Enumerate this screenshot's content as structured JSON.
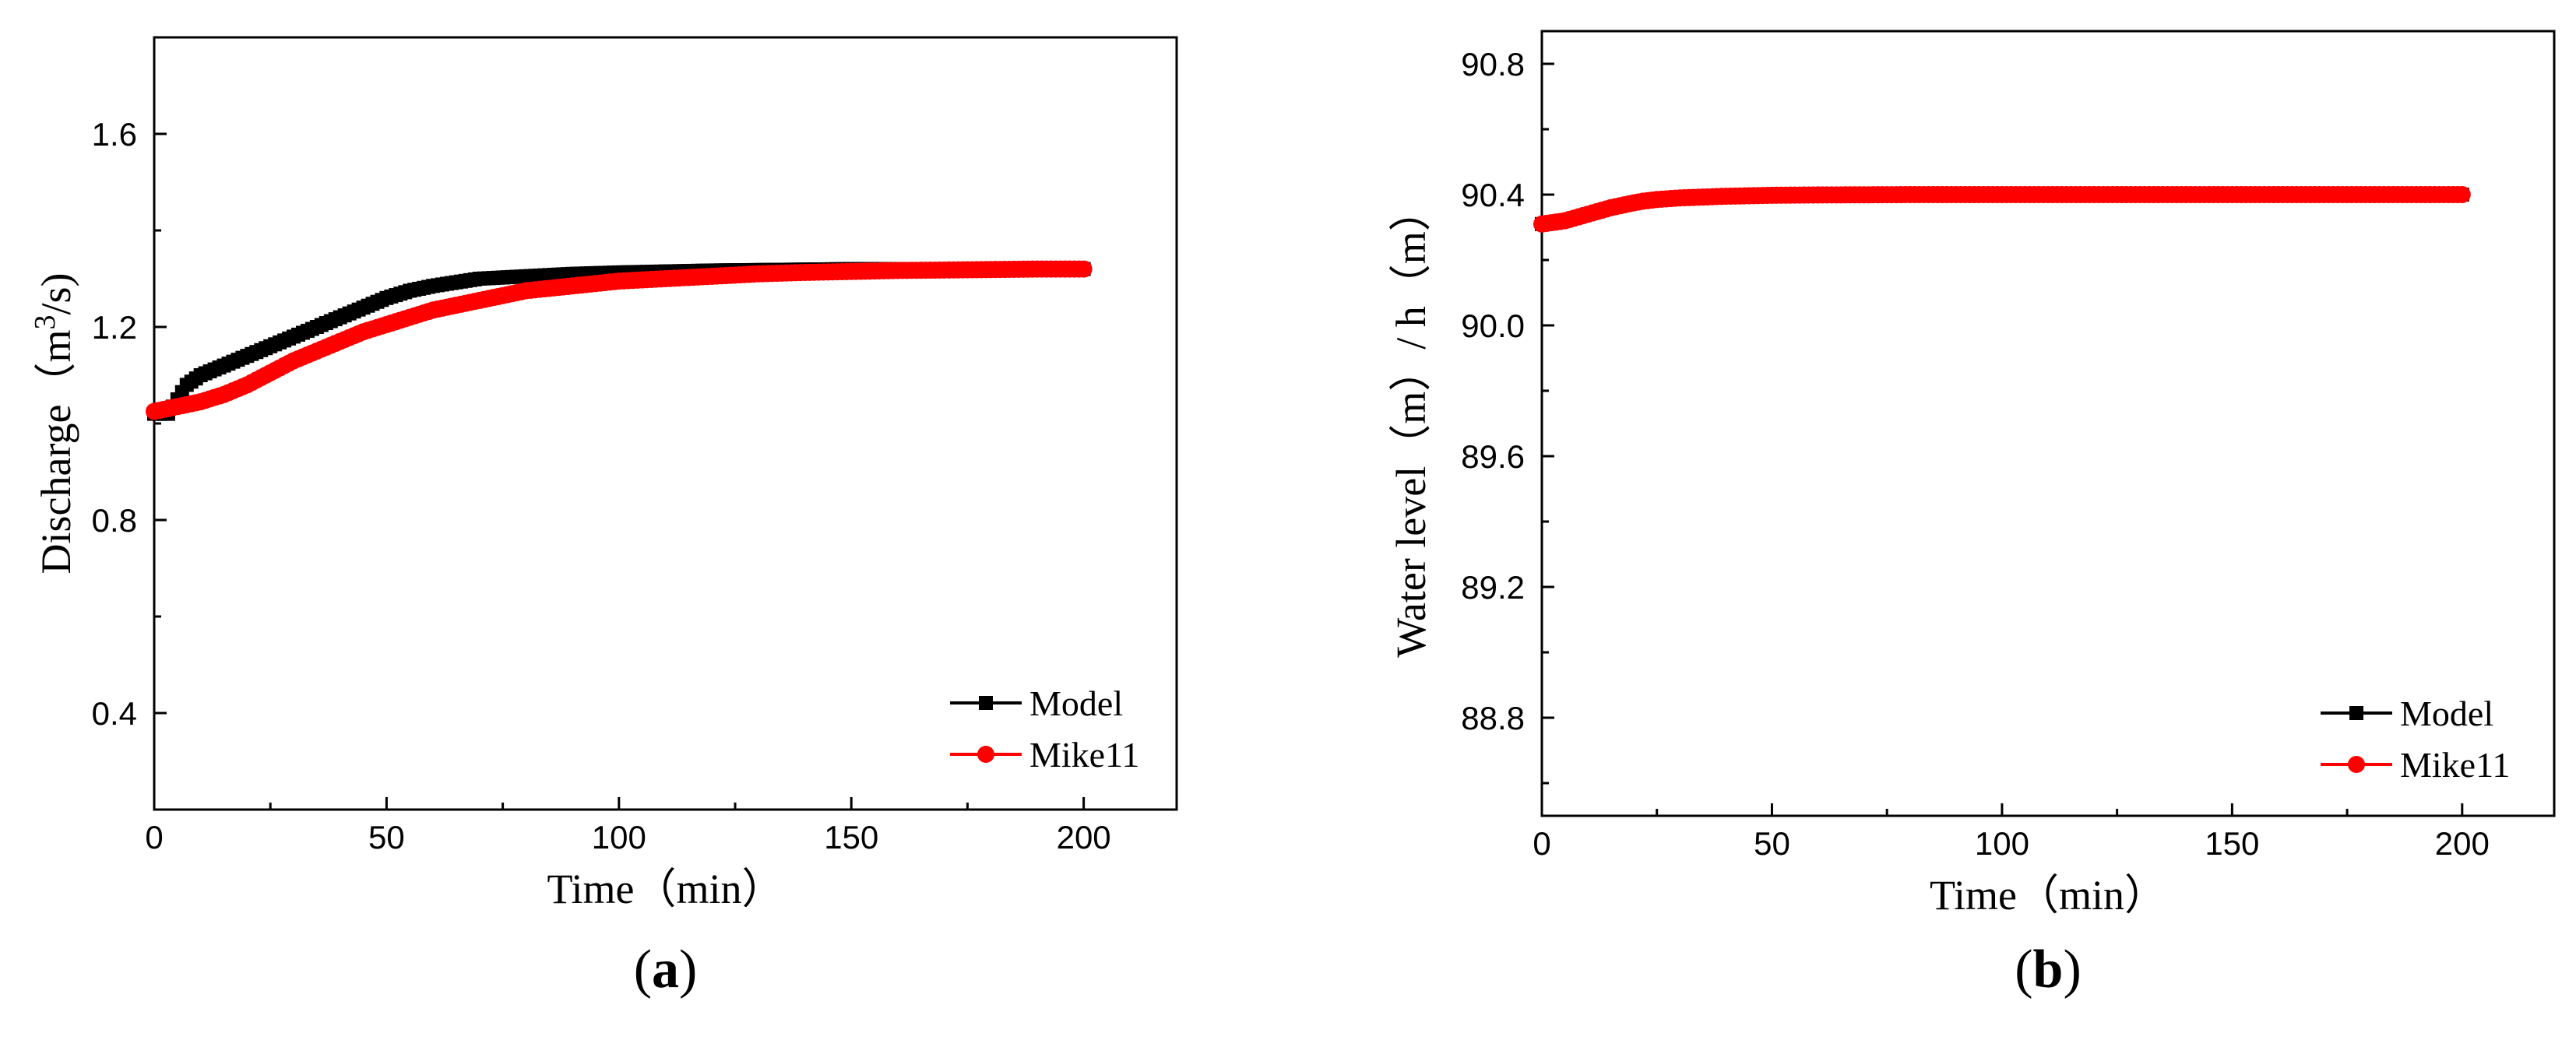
{
  "chart_data": [
    {
      "type": "line",
      "panel_label": {
        "open": "(",
        "letter": "a",
        "close": ")"
      },
      "xlabel": "Time（min）",
      "ylabel": {
        "pre": "Discharge（m",
        "sup": "3",
        "post": "/s)"
      },
      "xlim": [
        0,
        220
      ],
      "ylim": [
        0.2,
        1.8
      ],
      "xticks": [
        0,
        50,
        100,
        150,
        200
      ],
      "yticks": [
        0.4,
        0.8,
        1.2,
        1.6
      ],
      "xtick_labels": [
        "0",
        "50",
        "100",
        "150",
        "200"
      ],
      "ytick_labels": [
        "0.4",
        "0.8",
        "1.2",
        "1.6"
      ],
      "legend_position": "bottom-right",
      "series": [
        {
          "name": "Model",
          "color": "#000000",
          "marker": "square",
          "x": [
            0,
            3,
            5,
            7,
            10,
            15,
            20,
            25,
            30,
            35,
            40,
            45,
            50,
            55,
            60,
            70,
            80,
            90,
            100,
            110,
            120,
            130,
            140,
            150,
            160,
            170,
            180,
            190,
            200
          ],
          "y": [
            1.02,
            1.02,
            1.05,
            1.08,
            1.1,
            1.12,
            1.14,
            1.16,
            1.18,
            1.2,
            1.22,
            1.24,
            1.26,
            1.275,
            1.285,
            1.3,
            1.305,
            1.31,
            1.313,
            1.315,
            1.317,
            1.318,
            1.319,
            1.32,
            1.32,
            1.32,
            1.32,
            1.32,
            1.32
          ]
        },
        {
          "name": "Mike11",
          "color": "#ff0000",
          "marker": "circle",
          "x": [
            0,
            5,
            10,
            15,
            20,
            25,
            30,
            35,
            40,
            45,
            50,
            55,
            60,
            70,
            80,
            90,
            100,
            110,
            120,
            130,
            140,
            150,
            160,
            170,
            180,
            190,
            200
          ],
          "y": [
            1.025,
            1.035,
            1.045,
            1.06,
            1.08,
            1.105,
            1.13,
            1.15,
            1.17,
            1.19,
            1.205,
            1.22,
            1.235,
            1.255,
            1.275,
            1.285,
            1.295,
            1.3,
            1.305,
            1.31,
            1.313,
            1.315,
            1.317,
            1.318,
            1.319,
            1.32,
            1.32
          ]
        }
      ]
    },
    {
      "type": "line",
      "panel_label": {
        "open": "(",
        "letter": "b",
        "close": ")"
      },
      "xlabel": "Time（min）",
      "ylabel": "Water level（m）/ h（m）",
      "xlim": [
        0,
        220
      ],
      "ylim": [
        88.5,
        90.9
      ],
      "xticks": [
        0,
        50,
        100,
        150,
        200
      ],
      "yticks": [
        88.8,
        89.2,
        89.6,
        90.0,
        90.4,
        90.8
      ],
      "xtick_labels": [
        "0",
        "50",
        "100",
        "150",
        "200"
      ],
      "ytick_labels": [
        "88.8",
        "89.2",
        "89.6",
        "90.0",
        "90.4",
        "90.8"
      ],
      "legend_position": "bottom-right",
      "series": [
        {
          "name": "Model",
          "color": "#000000",
          "marker": "square",
          "x": [
            0,
            5,
            10,
            15,
            20,
            22,
            25,
            30,
            40,
            50,
            60,
            80,
            100,
            120,
            140,
            160,
            180,
            200
          ],
          "y": [
            90.31,
            90.32,
            90.34,
            90.36,
            90.375,
            90.38,
            90.385,
            90.39,
            90.395,
            90.398,
            90.399,
            90.4,
            90.4,
            90.4,
            90.4,
            90.4,
            90.4,
            90.4
          ]
        },
        {
          "name": "Mike11",
          "color": "#ff0000",
          "marker": "circle",
          "x": [
            0,
            5,
            10,
            15,
            20,
            22,
            25,
            30,
            40,
            50,
            60,
            80,
            100,
            120,
            140,
            160,
            180,
            200
          ],
          "y": [
            90.31,
            90.32,
            90.34,
            90.36,
            90.375,
            90.38,
            90.385,
            90.39,
            90.395,
            90.398,
            90.399,
            90.4,
            90.4,
            90.4,
            90.4,
            90.4,
            90.4,
            90.4
          ]
        }
      ]
    }
  ]
}
